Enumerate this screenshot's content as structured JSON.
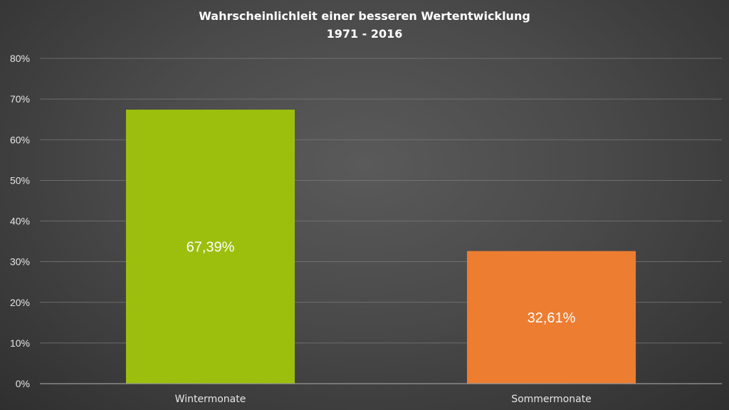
{
  "chart_data": {
    "type": "bar",
    "title": "Wahrscheinlichleit einer besseren Wertentwicklung",
    "subtitle": "1971 - 2016",
    "categories": [
      "Wintermonate",
      "Sommermonate"
    ],
    "values": [
      67.39,
      32.61
    ],
    "data_labels": [
      "67,39%",
      "32,61%"
    ],
    "colors": [
      "#9bbf0c",
      "#ed7d31"
    ],
    "ylim": [
      0,
      80
    ],
    "yticks": [
      0,
      10,
      20,
      30,
      40,
      50,
      60,
      70,
      80
    ],
    "ytick_labels": [
      "0%",
      "10%",
      "20%",
      "30%",
      "40%",
      "50%",
      "60%",
      "70%",
      "80%"
    ],
    "xlabel": "",
    "ylabel": "",
    "grid": true,
    "legend": "none"
  }
}
